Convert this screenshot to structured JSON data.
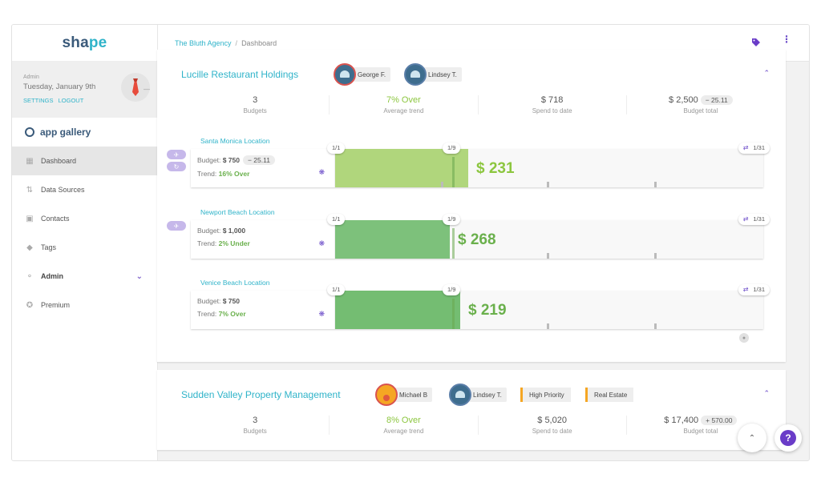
{
  "app": {
    "logo_a": "sha",
    "logo_b": "pe"
  },
  "user": {
    "role": "Admin",
    "date": "Tuesday, January 9th",
    "settings": "SETTINGS",
    "logout": "LOGOUT"
  },
  "app_gallery": "app gallery",
  "nav": [
    {
      "label": "Dashboard",
      "icon": "grid-icon"
    },
    {
      "label": "Data Sources",
      "icon": "sort-icon"
    },
    {
      "label": "Contacts",
      "icon": "contacts-icon"
    },
    {
      "label": "Tags",
      "icon": "tag-icon"
    },
    {
      "label": "Admin",
      "icon": "key-icon"
    },
    {
      "label": "Premium",
      "icon": "star-icon"
    }
  ],
  "breadcrumb": {
    "agency": "The Bluth Agency",
    "separator": "/",
    "current": "Dashboard"
  },
  "colors": {
    "accent": "#2fb3c9",
    "purple": "#6a3cc8",
    "green_light": "#b0d67c",
    "green": "#7dc17b",
    "orange": "#f5a623"
  },
  "card1": {
    "title": "Lucille Restaurant Holdings",
    "people": [
      "George F.",
      "Lindsey T."
    ],
    "stats": {
      "budgets_val": "3",
      "budgets_lbl": "Budgets",
      "trend_val": "7% Over",
      "trend_lbl": "Average trend",
      "spend_val": "$ 718",
      "spend_lbl": "Spend to date",
      "total_val": "$ 2,500",
      "total_pill": "− 25.11",
      "total_lbl": "Budget total"
    },
    "locations": [
      {
        "title": "Santa Monica Location",
        "budget_label": "Budget:",
        "budget": "$ 750",
        "pill": "− 25.11",
        "trend_label": "Trend:",
        "trend": "16% Over",
        "amount": "$ 231",
        "period_start": "1/1",
        "period_mid": "1/9",
        "period_end": "1/31",
        "progress": 0.31,
        "color": "#b0d67c",
        "text_color": "#8cc63f"
      },
      {
        "title": "Newport Beach Location",
        "budget_label": "Budget:",
        "budget": "$ 1,000",
        "pill": "",
        "trend_label": "Trend:",
        "trend": "2% Under",
        "amount": "$ 268",
        "period_start": "1/1",
        "period_mid": "1/9",
        "period_end": "1/31",
        "progress": 0.268,
        "color": "#7dc17b",
        "text_color": "#6ab04c"
      },
      {
        "title": "Venice Beach Location",
        "budget_label": "Budget:",
        "budget": "$ 750",
        "pill": "",
        "trend_label": "Trend:",
        "trend": "7% Over",
        "amount": "$ 219",
        "period_start": "1/1",
        "period_mid": "1/9",
        "period_end": "1/31",
        "progress": 0.292,
        "color": "#74bd72",
        "text_color": "#6ab04c"
      }
    ]
  },
  "card2": {
    "title": "Sudden Valley Property Management",
    "people": [
      "Michael B",
      "Lindsey T."
    ],
    "tags": [
      "High Priority",
      "Real Estate"
    ],
    "stats": {
      "budgets_val": "3",
      "budgets_lbl": "Budgets",
      "trend_val": "8% Over",
      "trend_lbl": "Average trend",
      "spend_val": "$ 5,020",
      "spend_lbl": "Spend to date",
      "total_val": "$ 17,400",
      "total_pill": "+ 570.00",
      "total_lbl": "Budget total"
    }
  },
  "help_label": "?"
}
